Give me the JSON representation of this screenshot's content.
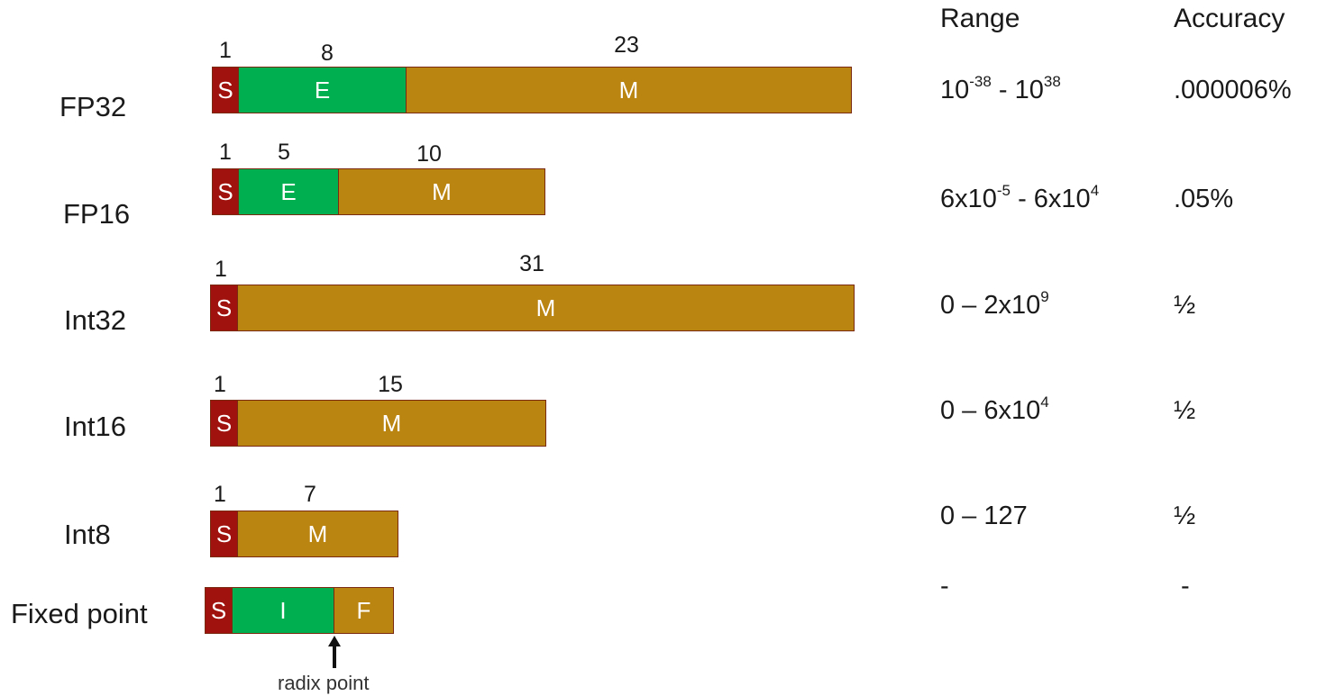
{
  "headers": {
    "range": "Range",
    "accuracy": "Accuracy"
  },
  "colors": {
    "sign": "#a0120e",
    "exponent": "#00b050",
    "mantissa": "#bb8512"
  },
  "formats": [
    {
      "name": "FP32",
      "segments": [
        {
          "letter": "S",
          "bits": "1",
          "type": "sign"
        },
        {
          "letter": "E",
          "bits": "8",
          "type": "exponent"
        },
        {
          "letter": "M",
          "bits": "23",
          "type": "mantissa"
        }
      ],
      "range": {
        "a": "10",
        "a_exp": "-38",
        "b": "10",
        "b_exp": "38",
        "sep": " - "
      },
      "accuracy": ".000006%"
    },
    {
      "name": "FP16",
      "segments": [
        {
          "letter": "S",
          "bits": "1",
          "type": "sign"
        },
        {
          "letter": "E",
          "bits": "5",
          "type": "exponent"
        },
        {
          "letter": "M",
          "bits": "10",
          "type": "mantissa"
        }
      ],
      "range": {
        "a": "6x10",
        "a_exp": "-5",
        "b": "6x10",
        "b_exp": "4",
        "sep": " - "
      },
      "accuracy": ".05%"
    },
    {
      "name": "Int32",
      "segments": [
        {
          "letter": "S",
          "bits": "1",
          "type": "sign"
        },
        {
          "letter": "M",
          "bits": "31",
          "type": "mantissa"
        }
      ],
      "range": {
        "a": "0 – 2x10",
        "a_exp": "9"
      },
      "accuracy": "½"
    },
    {
      "name": "Int16",
      "segments": [
        {
          "letter": "S",
          "bits": "1",
          "type": "sign"
        },
        {
          "letter": "M",
          "bits": "15",
          "type": "mantissa"
        }
      ],
      "range": {
        "a": "0 – 6x10",
        "a_exp": "4"
      },
      "accuracy": "½"
    },
    {
      "name": "Int8",
      "segments": [
        {
          "letter": "S",
          "bits": "1",
          "type": "sign"
        },
        {
          "letter": "M",
          "bits": "7",
          "type": "mantissa"
        }
      ],
      "range": {
        "a": "0 – 127"
      },
      "accuracy": "½"
    },
    {
      "name": "Fixed point",
      "segments": [
        {
          "letter": "S",
          "bits": "",
          "type": "sign"
        },
        {
          "letter": "I",
          "bits": "",
          "type": "exponent"
        },
        {
          "letter": "F",
          "bits": "",
          "type": "mantissa"
        }
      ],
      "range": {
        "a": "-"
      },
      "accuracy": "-"
    }
  ],
  "radix_label": "radix point",
  "arrow_icon": "up-arrow-icon"
}
